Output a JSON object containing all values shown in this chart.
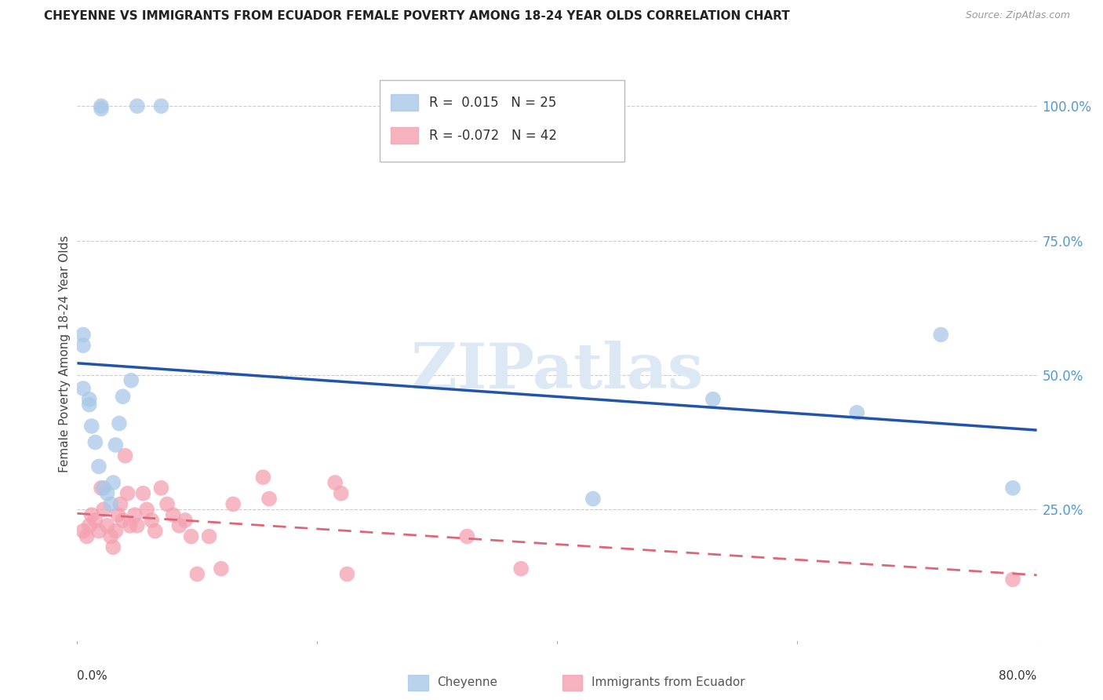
{
  "title": "CHEYENNE VS IMMIGRANTS FROM ECUADOR FEMALE POVERTY AMONG 18-24 YEAR OLDS CORRELATION CHART",
  "source": "Source: ZipAtlas.com",
  "ylabel": "Female Poverty Among 18-24 Year Olds",
  "xlim": [
    0.0,
    0.8
  ],
  "ylim": [
    0.0,
    1.08
  ],
  "cheyenne_R": 0.015,
  "cheyenne_N": 25,
  "ecuador_R": -0.072,
  "ecuador_N": 42,
  "cheyenne_color": "#a8c8e8",
  "ecuador_color": "#f4a0b0",
  "cheyenne_line_color": "#2255aa",
  "ecuador_line_color": "#dd6677",
  "watermark": "ZIPatlas",
  "watermark_color": "#dde8f5",
  "cheyenne_x": [
    0.02,
    0.02,
    0.05,
    0.07,
    0.005,
    0.005,
    0.005,
    0.01,
    0.01,
    0.012,
    0.015,
    0.018,
    0.022,
    0.025,
    0.028,
    0.03,
    0.032,
    0.035,
    0.038,
    0.045,
    0.43,
    0.53,
    0.65,
    0.72,
    0.78
  ],
  "cheyenne_y": [
    1.0,
    0.995,
    1.0,
    1.0,
    0.575,
    0.555,
    0.475,
    0.455,
    0.445,
    0.405,
    0.375,
    0.33,
    0.29,
    0.28,
    0.26,
    0.3,
    0.37,
    0.41,
    0.46,
    0.49,
    0.27,
    0.455,
    0.43,
    0.575,
    0.29
  ],
  "ecuador_x": [
    0.005,
    0.008,
    0.01,
    0.012,
    0.015,
    0.018,
    0.02,
    0.022,
    0.025,
    0.028,
    0.03,
    0.032,
    0.034,
    0.036,
    0.038,
    0.04,
    0.042,
    0.044,
    0.048,
    0.05,
    0.055,
    0.058,
    0.062,
    0.065,
    0.07,
    0.075,
    0.08,
    0.085,
    0.09,
    0.095,
    0.1,
    0.11,
    0.12,
    0.13,
    0.155,
    0.16,
    0.215,
    0.22,
    0.225,
    0.325,
    0.37,
    0.78
  ],
  "ecuador_y": [
    0.21,
    0.2,
    0.22,
    0.24,
    0.23,
    0.21,
    0.29,
    0.25,
    0.22,
    0.2,
    0.18,
    0.21,
    0.24,
    0.26,
    0.23,
    0.35,
    0.28,
    0.22,
    0.24,
    0.22,
    0.28,
    0.25,
    0.23,
    0.21,
    0.29,
    0.26,
    0.24,
    0.22,
    0.23,
    0.2,
    0.13,
    0.2,
    0.14,
    0.26,
    0.31,
    0.27,
    0.3,
    0.28,
    0.13,
    0.2,
    0.14,
    0.12
  ]
}
